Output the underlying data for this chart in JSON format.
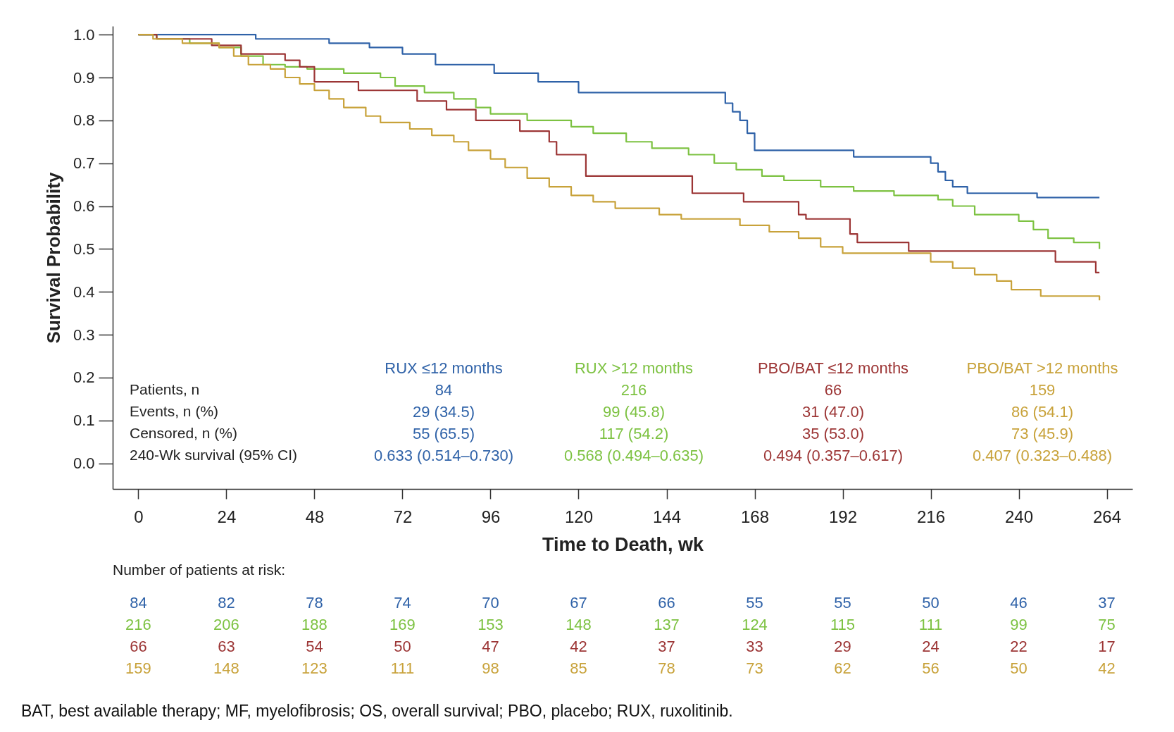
{
  "chart_data": {
    "type": "step",
    "xlabel": "Time to Death, wk",
    "ylabel": "Survival Probability",
    "xlim": [
      -7,
      271
    ],
    "ylim": [
      -0.06,
      1.02
    ],
    "xticks": [
      0,
      24,
      48,
      72,
      96,
      120,
      144,
      168,
      192,
      216,
      240,
      264
    ],
    "yticks": [
      {
        "value": 0,
        "label": "0.0"
      },
      {
        "value": 0.1,
        "label": "0.1"
      },
      {
        "value": 0.2,
        "label": "0.2"
      },
      {
        "value": 0.3,
        "label": "0.3"
      },
      {
        "value": 0.4,
        "label": "0.4"
      },
      {
        "value": 0.5,
        "label": "0.5"
      },
      {
        "value": 0.6,
        "label": "0.6"
      },
      {
        "value": 0.7,
        "label": "0.7"
      },
      {
        "value": 0.8,
        "label": "0.8"
      },
      {
        "value": 0.9,
        "label": "0.9"
      },
      {
        "value": 1,
        "label": "1.0"
      }
    ],
    "grid": false,
    "line_style": "solid",
    "series": [
      {
        "name": "RUX ≤12 months",
        "color": "#2f62a8",
        "x": [
          0,
          32,
          52,
          63,
          72,
          81,
          97,
          109,
          120,
          160,
          162,
          164,
          166,
          168,
          195,
          216,
          218,
          220,
          222,
          226,
          245,
          262
        ],
        "values": [
          1.0,
          0.99,
          0.98,
          0.97,
          0.955,
          0.93,
          0.91,
          0.89,
          0.865,
          0.84,
          0.82,
          0.8,
          0.77,
          0.73,
          0.715,
          0.7,
          0.68,
          0.66,
          0.645,
          0.63,
          0.62,
          0.62
        ]
      },
      {
        "name": "RUX >12 months",
        "color": "#7dc242",
        "x": [
          0,
          5,
          14,
          22,
          28,
          34,
          40,
          46,
          56,
          66,
          70,
          78,
          86,
          92,
          96,
          106,
          118,
          124,
          133,
          140,
          150,
          157,
          163,
          170,
          176,
          186,
          195,
          206,
          218,
          222,
          228,
          240,
          244,
          248,
          255,
          262
        ],
        "values": [
          1.0,
          0.99,
          0.98,
          0.97,
          0.95,
          0.93,
          0.925,
          0.92,
          0.91,
          0.9,
          0.88,
          0.865,
          0.85,
          0.83,
          0.815,
          0.8,
          0.785,
          0.77,
          0.75,
          0.735,
          0.72,
          0.7,
          0.685,
          0.67,
          0.66,
          0.645,
          0.635,
          0.625,
          0.615,
          0.6,
          0.58,
          0.565,
          0.545,
          0.525,
          0.515,
          0.5
        ]
      },
      {
        "name": "PBO/BAT ≤12 months",
        "color": "#9c3535",
        "x": [
          0,
          5,
          20,
          28,
          40,
          44,
          48,
          60,
          76,
          84,
          92,
          104,
          112,
          114,
          122,
          151,
          165,
          180,
          182,
          194,
          196,
          210,
          250,
          261,
          262
        ],
        "values": [
          1.0,
          0.99,
          0.975,
          0.955,
          0.94,
          0.925,
          0.89,
          0.87,
          0.845,
          0.825,
          0.8,
          0.775,
          0.75,
          0.72,
          0.67,
          0.63,
          0.61,
          0.58,
          0.57,
          0.535,
          0.515,
          0.495,
          0.47,
          0.445,
          0.445
        ]
      },
      {
        "name": "PBO/BAT >12 months",
        "color": "#c8a23a",
        "x": [
          0,
          4,
          12,
          22,
          26,
          30,
          36,
          40,
          44,
          48,
          52,
          56,
          62,
          66,
          74,
          80,
          86,
          90,
          96,
          100,
          106,
          112,
          118,
          124,
          130,
          142,
          148,
          164,
          172,
          180,
          186,
          192,
          216,
          222,
          228,
          234,
          238,
          246,
          262
        ],
        "values": [
          1.0,
          0.99,
          0.98,
          0.97,
          0.95,
          0.93,
          0.92,
          0.9,
          0.885,
          0.87,
          0.85,
          0.83,
          0.81,
          0.795,
          0.78,
          0.765,
          0.75,
          0.73,
          0.71,
          0.69,
          0.665,
          0.645,
          0.625,
          0.61,
          0.595,
          0.58,
          0.57,
          0.555,
          0.54,
          0.525,
          0.505,
          0.49,
          0.47,
          0.455,
          0.44,
          0.425,
          0.405,
          0.39,
          0.38
        ]
      }
    ],
    "annotations": [
      "Patients, n",
      "Events, n (%)",
      "Censored, n (%)",
      "240-Wk survival (95% CI)",
      "84",
      "216",
      "66",
      "159",
      "29 (34.5)",
      "99 (45.8)",
      "31 (47.0)",
      "86 (54.1)",
      "55 (65.5)",
      "117 (54.2)",
      "35 (53.0)",
      "73 (45.9)",
      "0.633 (0.514–0.730)",
      "0.568 (0.494–0.635)",
      "0.494 (0.357–0.617)",
      "0.407 (0.323–0.488)",
      "Number of patients at risk:",
      "84",
      "82",
      "78",
      "74",
      "70",
      "67",
      "66",
      "55",
      "55",
      "50",
      "46",
      "37",
      "216",
      "206",
      "188",
      "169",
      "153",
      "148",
      "137",
      "124",
      "115",
      "111",
      "99",
      "75",
      "66",
      "63",
      "54",
      "50",
      "47",
      "42",
      "37",
      "33",
      "29",
      "24",
      "22",
      "17",
      "159",
      "148",
      "123",
      "111",
      "98",
      "85",
      "78",
      "73",
      "62",
      "56",
      "50",
      "42",
      "BAT, best available therapy; MF, myelofibrosis; OS, overall survival; PBO, placebo; RUX, ruxolitinib."
    ]
  }
}
